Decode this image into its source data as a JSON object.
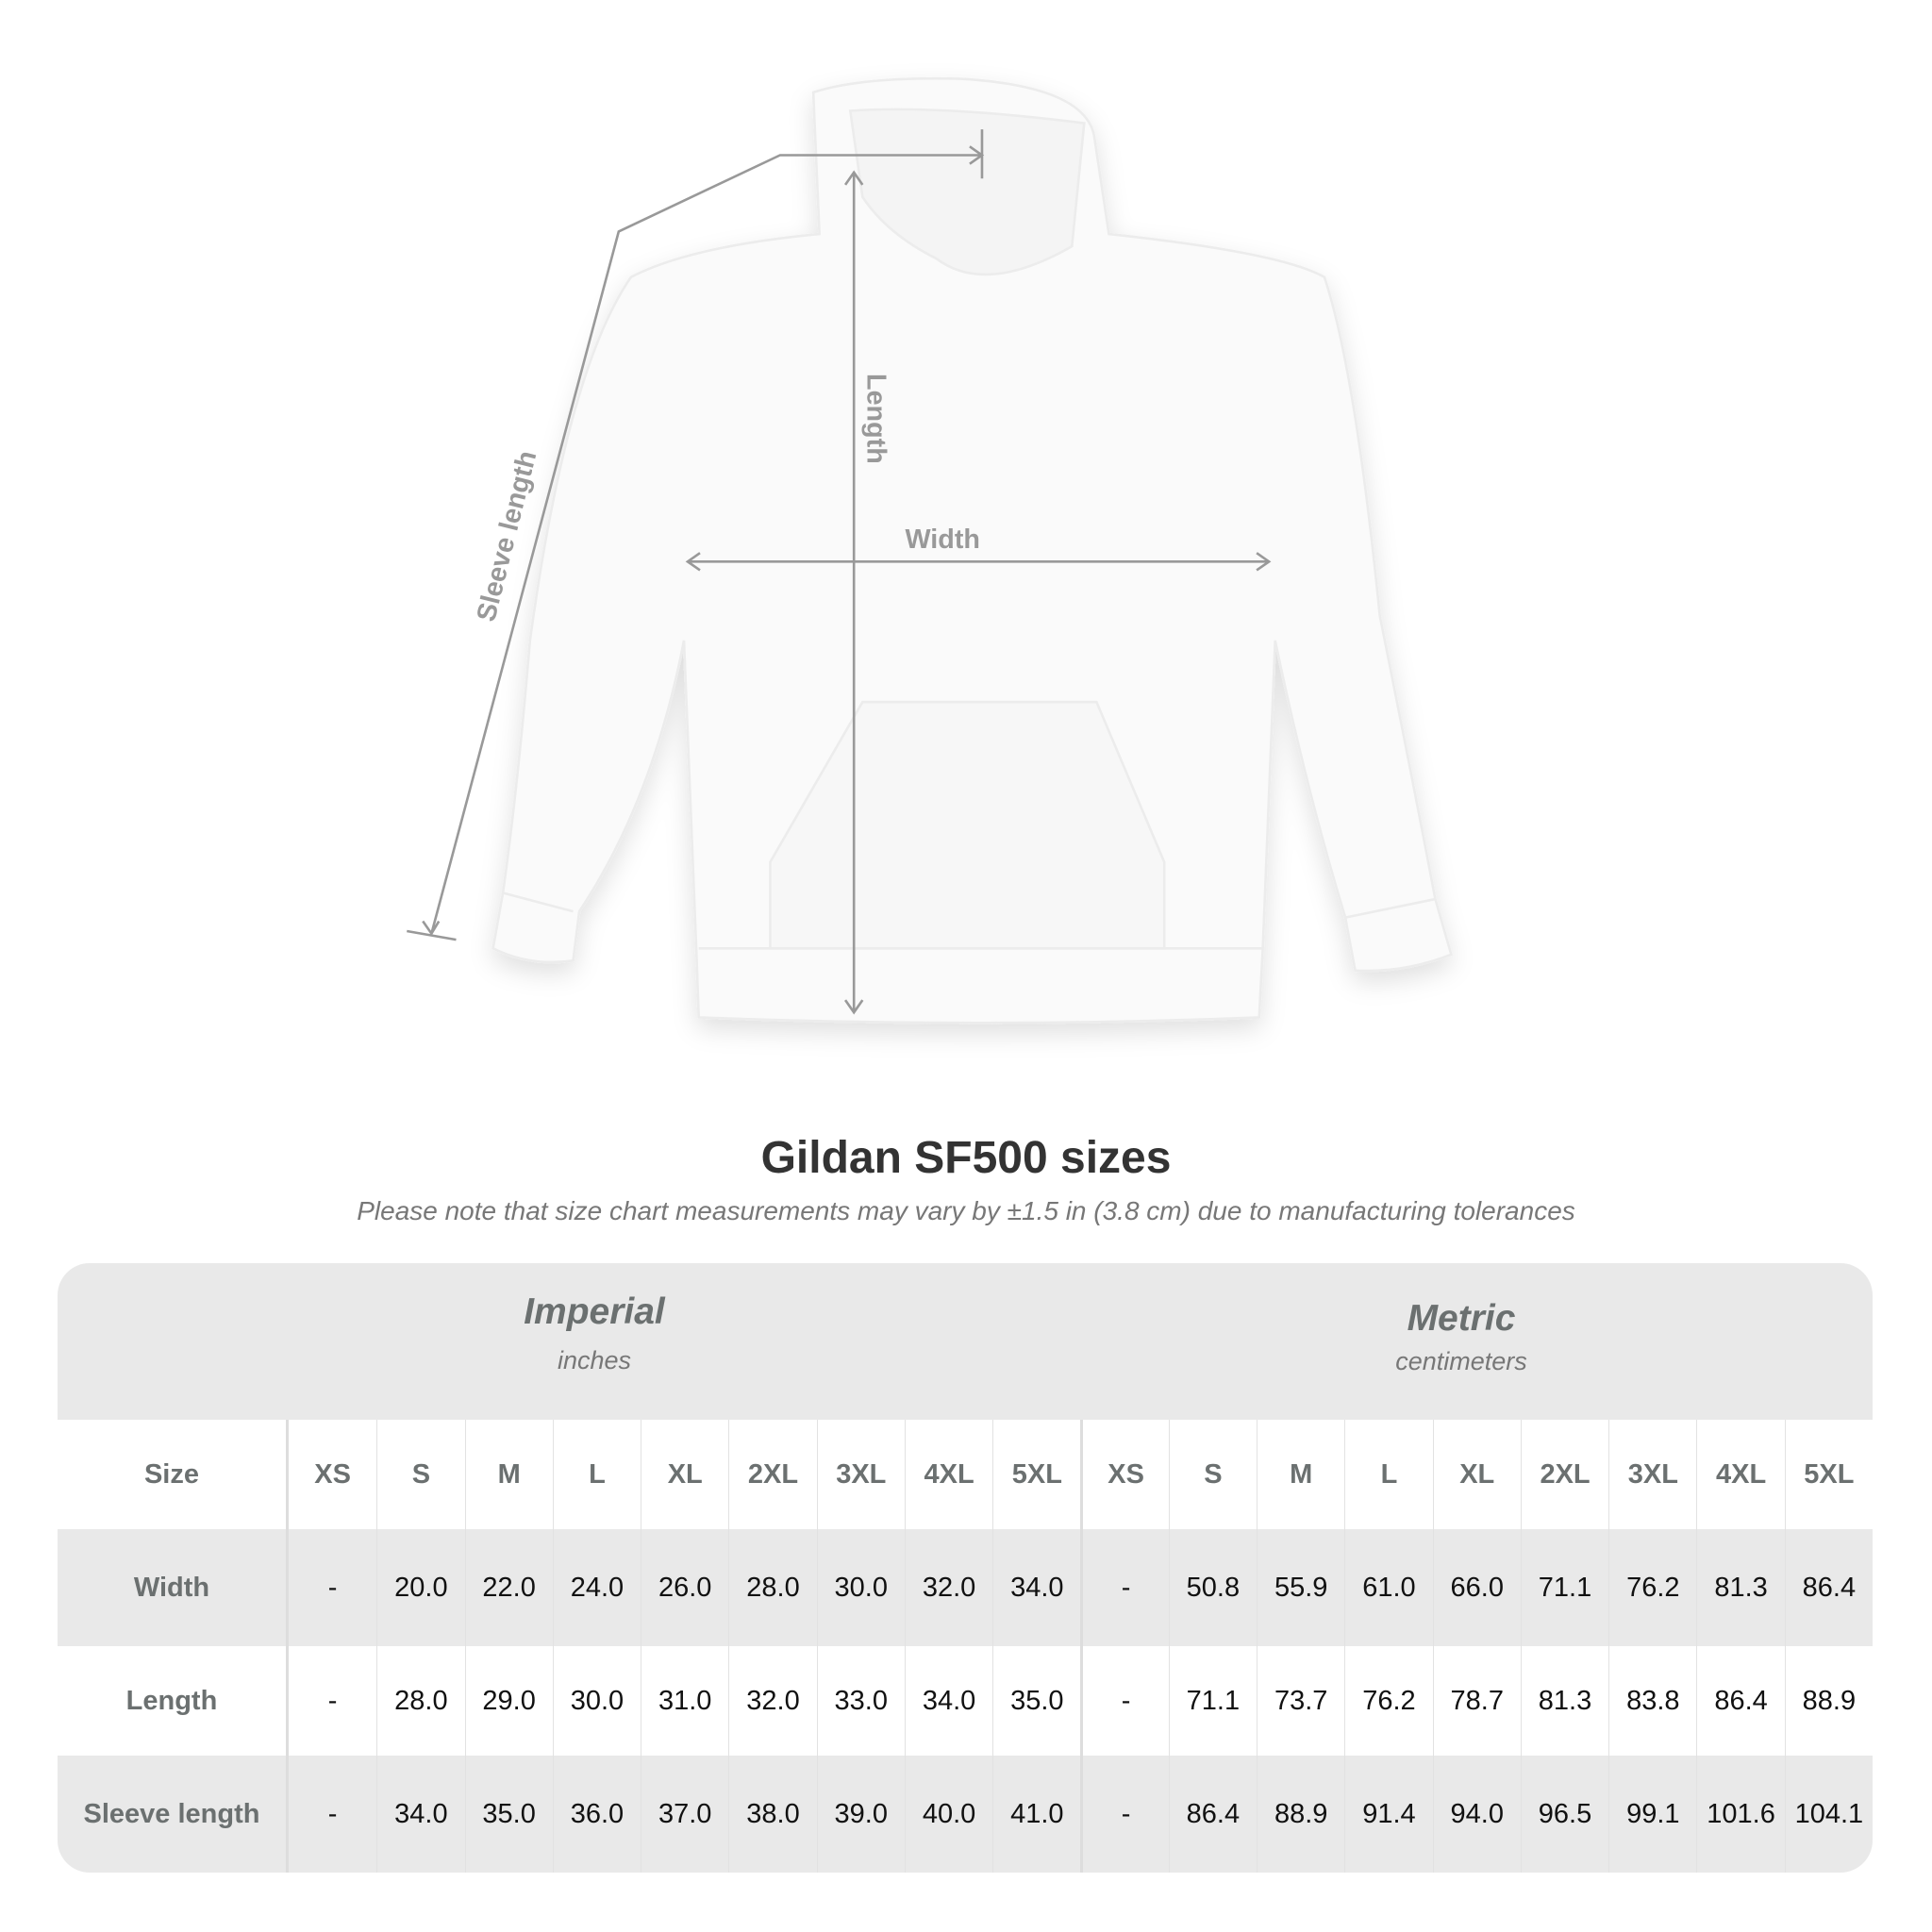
{
  "diagram": {
    "labels": {
      "width": "Width",
      "length": "Length",
      "sleeve_length": "Sleeve length"
    },
    "line_color": "#999999"
  },
  "title": "Gildan SF500 sizes",
  "subtitle": "Please note that size chart measurements may vary by ±1.5 in (3.8 cm) due to manufacturing tolerances",
  "table": {
    "imperial": {
      "name": "Imperial",
      "unit": "inches"
    },
    "metric": {
      "name": "Metric",
      "unit": "centimeters"
    },
    "header_label": "Size",
    "sizes": [
      "XS",
      "S",
      "M",
      "L",
      "XL",
      "2XL",
      "3XL",
      "4XL",
      "5XL"
    ],
    "rows": [
      {
        "label": "Width",
        "imperial": [
          "-",
          "20.0",
          "22.0",
          "24.0",
          "26.0",
          "28.0",
          "30.0",
          "32.0",
          "34.0"
        ],
        "metric": [
          "-",
          "50.8",
          "55.9",
          "61.0",
          "66.0",
          "71.1",
          "76.2",
          "81.3",
          "86.4"
        ]
      },
      {
        "label": "Length",
        "imperial": [
          "-",
          "28.0",
          "29.0",
          "30.0",
          "31.0",
          "32.0",
          "33.0",
          "34.0",
          "35.0"
        ],
        "metric": [
          "-",
          "71.1",
          "73.7",
          "76.2",
          "78.7",
          "81.3",
          "83.8",
          "86.4",
          "88.9"
        ]
      },
      {
        "label": "Sleeve length",
        "imperial": [
          "-",
          "34.0",
          "35.0",
          "36.0",
          "37.0",
          "38.0",
          "39.0",
          "40.0",
          "41.0"
        ],
        "metric": [
          "-",
          "86.4",
          "88.9",
          "91.4",
          "94.0",
          "96.5",
          "99.1",
          "101.6",
          "104.1"
        ]
      }
    ]
  }
}
